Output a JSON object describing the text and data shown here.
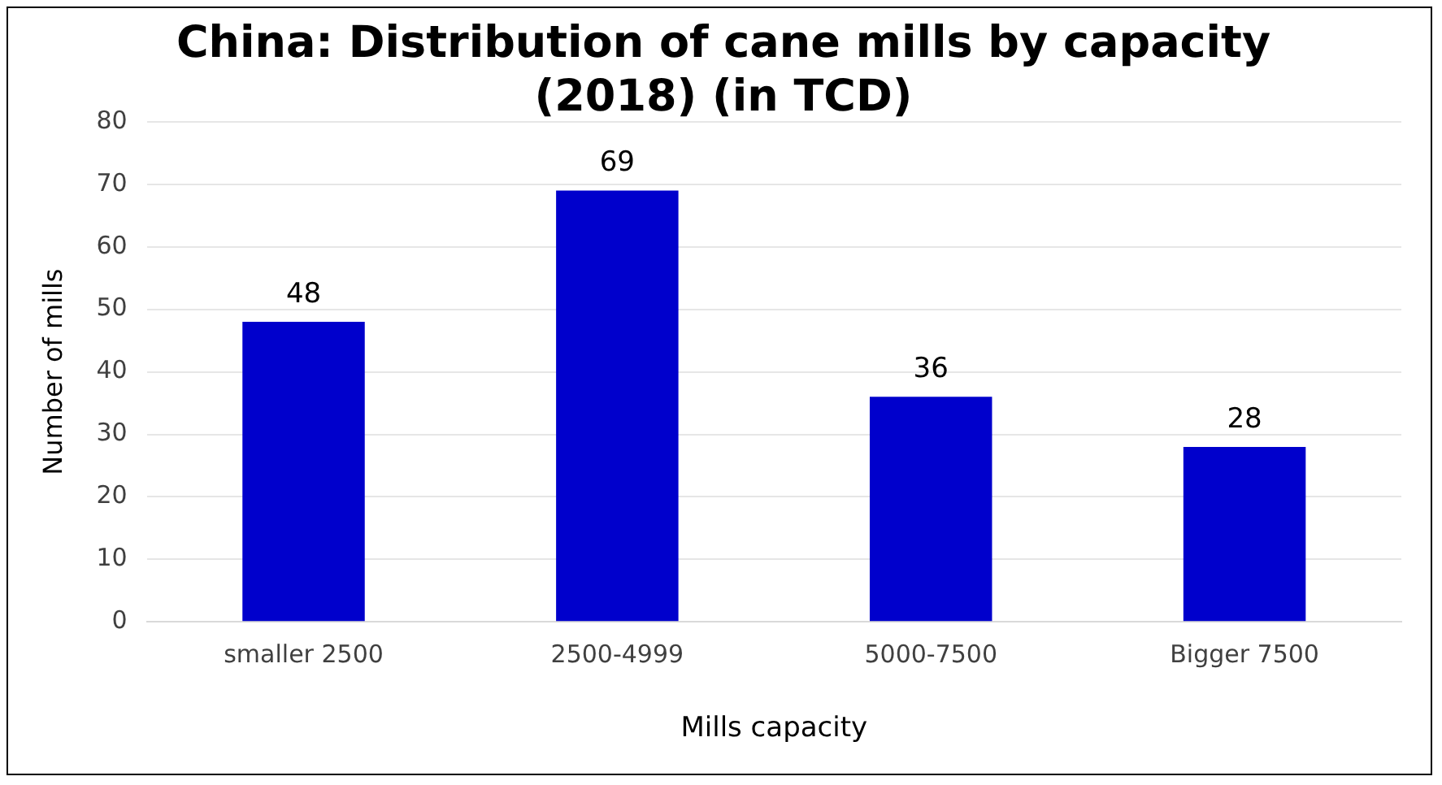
{
  "chart_data": {
    "type": "bar",
    "title": "China: Distribution of cane mills by capacity (2018) (in TCD)",
    "xlabel": "Mills capacity",
    "ylabel": "Number of mills",
    "categories": [
      "smaller 2500",
      "2500-4999",
      "5000-7500",
      "Bigger 7500"
    ],
    "values": [
      48,
      69,
      36,
      28
    ],
    "color": "#0000cc",
    "ylim": [
      0,
      80
    ],
    "yticks": [
      0,
      10,
      20,
      30,
      40,
      50,
      60,
      70,
      80
    ],
    "grid": "y",
    "data_labels": true,
    "legend": false
  }
}
